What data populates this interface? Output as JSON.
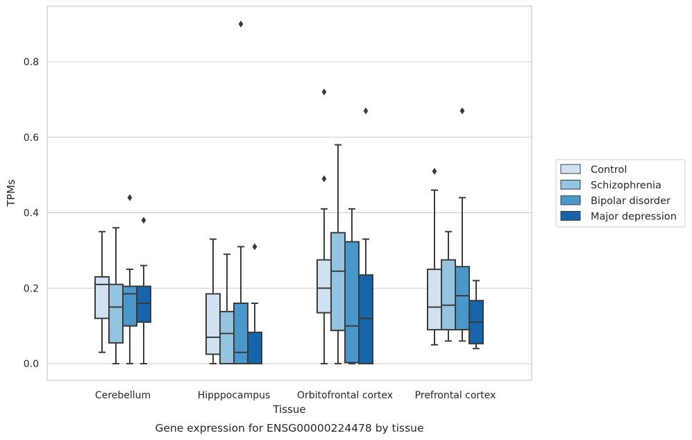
{
  "chart_data": {
    "type": "box",
    "caption": "Gene expression for ENSG00000224478 by tissue",
    "xlabel": "Tissue",
    "ylabel": "TPMs",
    "ylim": [
      -0.045,
      0.95
    ],
    "yticks": [
      0.0,
      0.2,
      0.4,
      0.6,
      0.8
    ],
    "ytick_labels": [
      "0.0",
      "0.2",
      "0.4",
      "0.6",
      "0.8"
    ],
    "grid": "horizontal",
    "legend_position": "outside-right",
    "categories": [
      "Cerebellum",
      "Hipppocampus",
      "Orbitofrontal cortex",
      "Prefrontal cortex"
    ],
    "series": [
      {
        "name": "Control",
        "color": "#d0e1f2",
        "boxes": [
          {
            "whislo": 0.03,
            "q1": 0.12,
            "med": 0.21,
            "q3": 0.23,
            "whishi": 0.35,
            "fliers": []
          },
          {
            "whislo": 0.0,
            "q1": 0.025,
            "med": 0.07,
            "q3": 0.185,
            "whishi": 0.33,
            "fliers": []
          },
          {
            "whislo": 0.0,
            "q1": 0.135,
            "med": 0.2,
            "q3": 0.275,
            "whishi": 0.41,
            "fliers": [
              0.49,
              0.72
            ]
          },
          {
            "whislo": 0.05,
            "q1": 0.09,
            "med": 0.15,
            "q3": 0.25,
            "whishi": 0.46,
            "fliers": [
              0.51
            ]
          }
        ]
      },
      {
        "name": "Schizophrenia",
        "color": "#94c4df",
        "boxes": [
          {
            "whislo": 0.0,
            "q1": 0.055,
            "med": 0.15,
            "q3": 0.21,
            "whishi": 0.36,
            "fliers": []
          },
          {
            "whislo": 0.0,
            "q1": 0.0,
            "med": 0.08,
            "q3": 0.138,
            "whishi": 0.29,
            "fliers": []
          },
          {
            "whislo": 0.0,
            "q1": 0.088,
            "med": 0.245,
            "q3": 0.347,
            "whishi": 0.58,
            "fliers": []
          },
          {
            "whislo": 0.06,
            "q1": 0.09,
            "med": 0.155,
            "q3": 0.275,
            "whishi": 0.35,
            "fliers": []
          }
        ]
      },
      {
        "name": "Bipolar disorder",
        "color": "#4a98c9",
        "boxes": [
          {
            "whislo": 0.0,
            "q1": 0.1,
            "med": 0.185,
            "q3": 0.205,
            "whishi": 0.25,
            "fliers": [
              0.44
            ]
          },
          {
            "whislo": 0.0,
            "q1": 0.0,
            "med": 0.03,
            "q3": 0.16,
            "whishi": 0.31,
            "fliers": [
              0.9
            ]
          },
          {
            "whislo": 0.0,
            "q1": 0.003,
            "med": 0.1,
            "q3": 0.323,
            "whishi": 0.41,
            "fliers": []
          },
          {
            "whislo": 0.06,
            "q1": 0.09,
            "med": 0.18,
            "q3": 0.257,
            "whishi": 0.44,
            "fliers": [
              0.67
            ]
          }
        ]
      },
      {
        "name": "Major depression",
        "color": "#1764ab",
        "boxes": [
          {
            "whislo": 0.0,
            "q1": 0.11,
            "med": 0.16,
            "q3": 0.205,
            "whishi": 0.26,
            "fliers": [
              0.38
            ]
          },
          {
            "whislo": 0.0,
            "q1": 0.0,
            "med": 0.0,
            "q3": 0.083,
            "whishi": 0.16,
            "fliers": [
              0.31
            ]
          },
          {
            "whislo": 0.0,
            "q1": 0.0,
            "med": 0.12,
            "q3": 0.235,
            "whishi": 0.33,
            "fliers": [
              0.67
            ]
          },
          {
            "whislo": 0.04,
            "q1": 0.053,
            "med": 0.11,
            "q3": 0.167,
            "whishi": 0.22,
            "fliers": []
          }
        ]
      }
    ]
  }
}
